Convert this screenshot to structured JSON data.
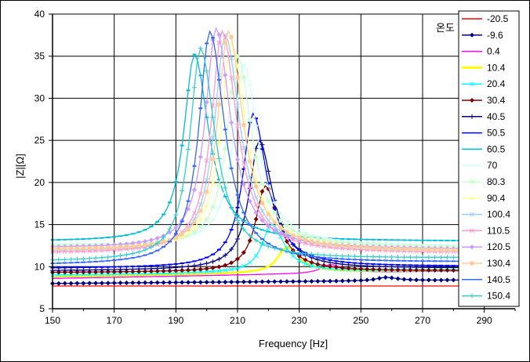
{
  "chart_data": {
    "type": "line",
    "xlabel": "Frequency [Hz]",
    "ylabel": "|Z|[Ω]",
    "legend_title": "온도",
    "legend_position": "right",
    "grid": true,
    "xlim": [
      150,
      300
    ],
    "ylim": [
      5,
      40
    ],
    "xticks": [
      150,
      170,
      190,
      210,
      230,
      250,
      270,
      290
    ],
    "yticks": [
      5,
      10,
      15,
      20,
      25,
      30,
      35,
      40
    ],
    "series": [
      {
        "name": "-20.5",
        "color": "#ff0000",
        "marker": "none",
        "y0": 7.7,
        "f0": 300,
        "peak": 7.7,
        "yend": 7.7
      },
      {
        "name": "-9.6",
        "color": "#000080",
        "marker": "diamond",
        "y0": 8.0,
        "f0": 258,
        "peak": 8.6,
        "yend": 8.4
      },
      {
        "name": "0.4",
        "color": "#ff00ff",
        "marker": "none",
        "y0": 8.6,
        "f0": 240,
        "peak": 10.1,
        "yend": 9.5
      },
      {
        "name": "10.4",
        "color": "#ffff00",
        "marker": "none",
        "y0": 8.8,
        "f0": 226,
        "peak": 12.3,
        "yend": 9.6
      },
      {
        "name": "20.4",
        "color": "#00ffff",
        "marker": "cross",
        "y0": 9.0,
        "f0": 221,
        "peak": 15.0,
        "yend": 9.6
      },
      {
        "name": "30.4",
        "color": "#800000",
        "marker": "diamond",
        "y0": 9.3,
        "f0": 219,
        "peak": 19.6,
        "yend": 9.5
      },
      {
        "name": "40.5",
        "color": "#000080",
        "marker": "plus",
        "y0": 9.5,
        "f0": 217,
        "peak": 25.0,
        "yend": 9.8
      },
      {
        "name": "50.5",
        "color": "#0000ff",
        "marker": "dash",
        "y0": 9.8,
        "f0": 215,
        "peak": 28.2,
        "yend": 10.0
      },
      {
        "name": "60.5",
        "color": "#00bcd4",
        "marker": "dash",
        "y0": 13.0,
        "f0": 196,
        "peak": 35.2,
        "yend": 13.0
      },
      {
        "name": "70",
        "color": "#ccffff",
        "marker": "dash",
        "y0": 12.6,
        "f0": 212,
        "peak": 34.0,
        "yend": 12.4
      },
      {
        "name": "80.3",
        "color": "#ccffcc",
        "marker": "square",
        "y0": 12.4,
        "f0": 210,
        "peak": 35.0,
        "yend": 12.2
      },
      {
        "name": "90.4",
        "color": "#ffff99",
        "marker": "triangle",
        "y0": 12.0,
        "f0": 208,
        "peak": 36.5,
        "yend": 12.0
      },
      {
        "name": "100.4",
        "color": "#99ccff",
        "marker": "cross",
        "y0": 11.8,
        "f0": 206,
        "peak": 37.5,
        "yend": 11.8
      },
      {
        "name": "110.5",
        "color": "#ff99cc",
        "marker": "cross",
        "y0": 11.6,
        "f0": 205,
        "peak": 38.0,
        "yend": 11.6
      },
      {
        "name": "120.5",
        "color": "#cc99ff",
        "marker": "diamond",
        "y0": 12.2,
        "f0": 203,
        "peak": 38.3,
        "yend": 12.0
      },
      {
        "name": "130.4",
        "color": "#ffcc99",
        "marker": "square",
        "y0": 12.0,
        "f0": 207,
        "peak": 38.0,
        "yend": 11.8
      },
      {
        "name": "140.5",
        "color": "#3366ff",
        "marker": "dash",
        "y0": 10.2,
        "f0": 201,
        "peak": 38.0,
        "yend": 10.5
      },
      {
        "name": "150.4",
        "color": "#33cccc",
        "marker": "plus",
        "y0": 10.6,
        "f0": 198,
        "peak": 36.0,
        "yend": 11.0
      }
    ]
  }
}
